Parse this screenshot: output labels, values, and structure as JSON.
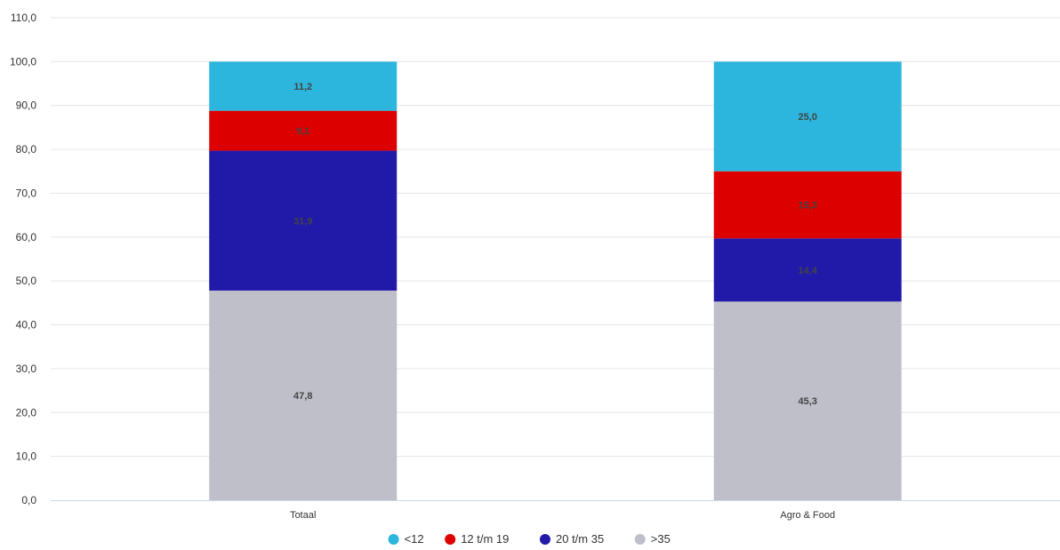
{
  "chart_data": {
    "type": "bar",
    "stacked": true,
    "categories": [
      "Totaal",
      "Agro & Food"
    ],
    "series": [
      {
        "name": ">35",
        "color": "#bfbfc9",
        "values": [
          47.8,
          45.3
        ],
        "labels": [
          "47,8",
          "45,3"
        ]
      },
      {
        "name": "20 t/m 35",
        "color": "#211aa9",
        "values": [
          31.9,
          14.4
        ],
        "labels": [
          "31,9",
          "14,4"
        ]
      },
      {
        "name": "12 t/m 19",
        "color": "#dd0000",
        "values": [
          9.1,
          15.3
        ],
        "labels": [
          "9,1",
          "15,3"
        ]
      },
      {
        "name": "<12",
        "color": "#2cb6dd",
        "values": [
          11.2,
          25.0
        ],
        "labels": [
          "11,2",
          "25,0"
        ]
      }
    ],
    "legend_order": [
      "<12",
      "12 t/m 19",
      "20 t/m 35",
      ">35"
    ],
    "yticks": [
      0,
      10,
      20,
      30,
      40,
      50,
      60,
      70,
      80,
      90,
      100,
      110
    ],
    "ytick_labels": [
      "0,0",
      "10,0",
      "20,0",
      "30,0",
      "40,0",
      "50,0",
      "60,0",
      "70,0",
      "80,0",
      "90,0",
      "100,0",
      "110,0"
    ],
    "ylim": [
      0,
      110
    ],
    "grid": true,
    "legend_position": "bottom-center",
    "title": "",
    "xlabel": "",
    "ylabel": ""
  }
}
